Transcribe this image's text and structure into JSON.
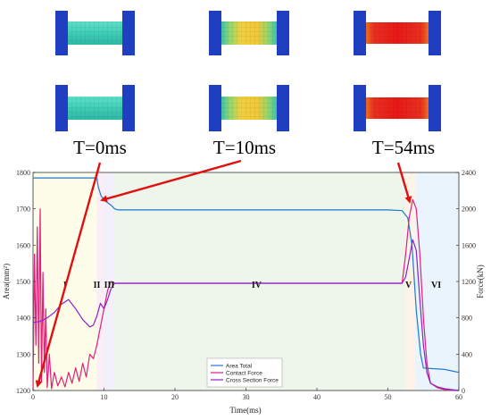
{
  "snapshots": {
    "labels": [
      "T=0ms",
      "T=10ms",
      "T=54ms"
    ],
    "times_ms": [
      0,
      10,
      54
    ]
  },
  "colors": {
    "area_total": "#1f77d0",
    "contact_force": "#e0207a",
    "cross_section_force": "#8b22c9",
    "arrow": "#e01010"
  },
  "chart_data": {
    "type": "line",
    "xlabel": "Time(ms)",
    "ylabel_left": "Area(mm²)",
    "ylabel_right": "Force(kN)",
    "xlim": [
      0,
      60
    ],
    "ylim_left": [
      1200,
      1800
    ],
    "ylim_right": [
      0,
      2400
    ],
    "x_ticks": [
      "0",
      "10",
      "20",
      "30",
      "40",
      "50",
      "60"
    ],
    "y_ticks_left": [
      "1200",
      "1300",
      "1400",
      "1500",
      "1600",
      "1700",
      "1800"
    ],
    "y_ticks_right": [
      "0",
      "400",
      "800",
      "1200",
      "1600",
      "2000",
      "2400"
    ],
    "grid": false,
    "legend_position": "bottom-center",
    "phases": [
      {
        "label": "I",
        "from": 0,
        "to": 9,
        "color": "#fdfde9"
      },
      {
        "label": "II",
        "from": 9,
        "to": 10,
        "color": "#fbeef6"
      },
      {
        "label": "III",
        "from": 10,
        "to": 11.5,
        "color": "#f1f0fb"
      },
      {
        "label": "IV",
        "from": 11.5,
        "to": 52.5,
        "color": "#eef6ec"
      },
      {
        "label": "V",
        "from": 52.5,
        "to": 53.8,
        "color": "#fdf3e6"
      },
      {
        "label": "VI",
        "from": 53.8,
        "to": 60,
        "color": "#e9f4fd"
      }
    ],
    "series": [
      {
        "name": "Area Total",
        "axis": "left",
        "x": [
          0,
          9,
          9.2,
          9.6,
          10,
          10.4,
          11,
          11.5,
          12,
          20,
          30,
          40,
          50,
          52,
          52.8,
          53.4,
          54,
          54.6,
          55,
          58,
          60
        ],
        "y": [
          1785,
          1785,
          1760,
          1735,
          1725,
          1718,
          1710,
          1700,
          1697,
          1697,
          1697,
          1697,
          1697,
          1695,
          1675,
          1600,
          1420,
          1300,
          1262,
          1258,
          1250
        ]
      },
      {
        "name": "Contact Force",
        "axis": "right",
        "x": [
          0,
          0.2,
          0.4,
          0.6,
          0.8,
          1,
          1.2,
          1.4,
          1.6,
          1.8,
          2,
          2.3,
          2.6,
          3,
          3.5,
          4,
          4.5,
          5,
          5.5,
          6,
          6.5,
          7,
          7.5,
          8,
          8.5,
          9,
          9.5,
          10,
          10.5,
          11,
          11.5,
          12,
          52,
          52.5,
          53,
          53.5,
          54,
          54.5,
          55,
          55.5,
          56,
          57,
          58,
          60
        ],
        "y": [
          0,
          1500,
          500,
          1800,
          300,
          2000,
          100,
          1300,
          200,
          900,
          30,
          400,
          20,
          200,
          50,
          150,
          40,
          200,
          80,
          250,
          100,
          300,
          150,
          400,
          350,
          500,
          700,
          900,
          1100,
          1200,
          1180,
          1180,
          1180,
          1500,
          1900,
          2100,
          2000,
          1500,
          800,
          300,
          80,
          30,
          10,
          0
        ]
      },
      {
        "name": "Cross Section Force",
        "axis": "right",
        "x": [
          0,
          1,
          2,
          3,
          4,
          5,
          6,
          7,
          8,
          8.5,
          9,
          9.5,
          10,
          10.5,
          11,
          11.5,
          12,
          52,
          52.5,
          53,
          53.5,
          54,
          54.5,
          55,
          55.5,
          56,
          57,
          58,
          60
        ],
        "y": [
          750,
          760,
          800,
          860,
          950,
          1000,
          900,
          780,
          700,
          720,
          820,
          960,
          900,
          1000,
          1120,
          1180,
          1180,
          1180,
          1250,
          1450,
          1660,
          1540,
          1000,
          500,
          200,
          80,
          40,
          20,
          0
        ]
      }
    ]
  }
}
